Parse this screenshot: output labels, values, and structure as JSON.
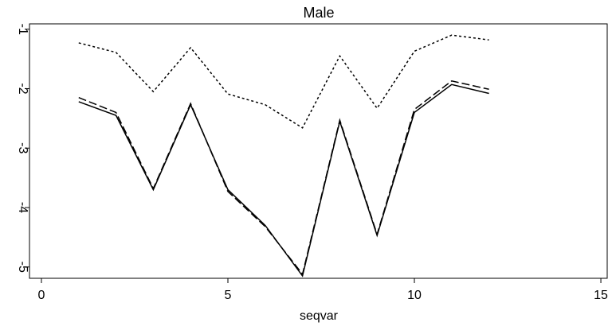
{
  "chart_data": {
    "type": "line",
    "title": "Male",
    "x_label": "seqvar",
    "x": [
      1,
      2,
      3,
      4,
      5,
      6,
      7,
      8,
      9,
      10,
      11,
      12
    ],
    "series": [
      {
        "color": "#000000",
        "dash": "dotted",
        "values": [
          -1.23,
          -1.39,
          -2.05,
          -1.31,
          -2.09,
          -2.27,
          -2.66,
          -1.45,
          -2.33,
          -1.37,
          -1.1,
          -1.18
        ]
      },
      {
        "color": "#000000",
        "dash": "solid",
        "values": [
          -2.22,
          -2.45,
          -3.7,
          -2.27,
          -3.7,
          -4.3,
          -5.15,
          -2.55,
          -4.47,
          -2.4,
          -1.93,
          -2.08
        ]
      },
      {
        "color": "#000000",
        "dash": "dashed",
        "values": [
          -2.15,
          -2.4,
          -3.68,
          -2.25,
          -3.73,
          -4.32,
          -5.12,
          -2.53,
          -4.45,
          -2.35,
          -1.87,
          -2.01
        ]
      }
    ],
    "xlim": [
      -0.32,
      15.17
    ],
    "xticks": [
      0,
      5,
      10,
      15
    ],
    "ylim": [
      -5.19,
      -0.91
    ],
    "yticks": [
      -1,
      -2,
      -3,
      -4,
      -5
    ]
  }
}
